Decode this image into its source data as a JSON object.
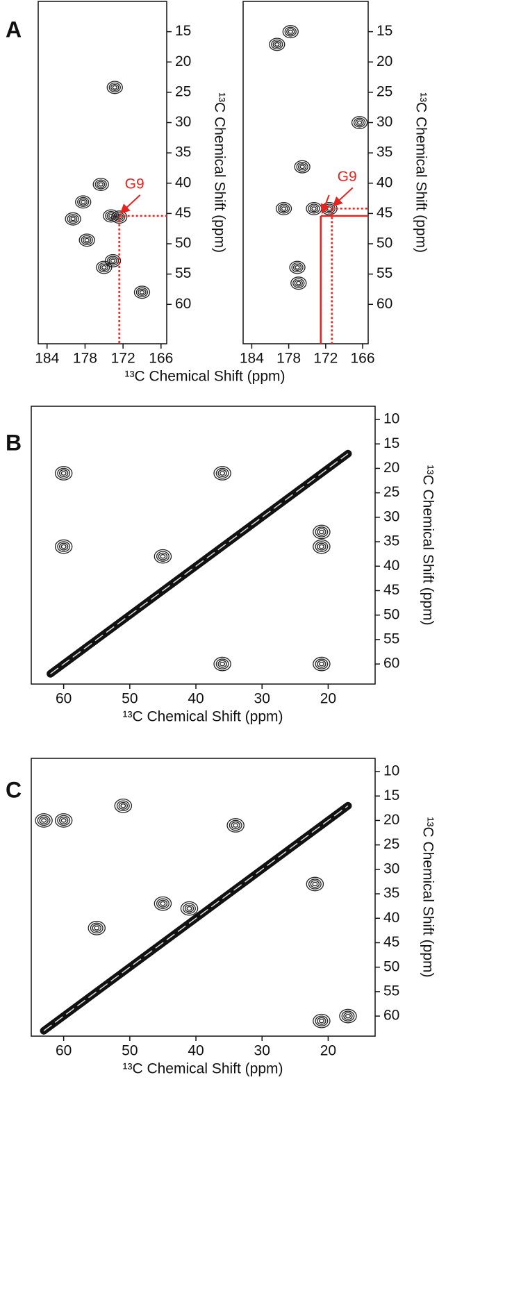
{
  "chart_data": [
    {
      "type": "contour",
      "panel_label": "A",
      "xlabel": "¹³C Chemical Shift (ppm)",
      "ylabel": "¹³C Chemical Shift (ppm)",
      "xlim": [
        185.4,
        165.1
      ],
      "ylim": [
        10,
        66.5
      ],
      "xticks": [
        184,
        178,
        172,
        166
      ],
      "yticks": [
        15,
        20,
        25,
        30,
        35,
        40,
        45,
        50,
        55,
        60
      ],
      "peaks": {
        "x": [
          175.5,
          178.3,
          173.9,
          179.9,
          173.6,
          175.0,
          177.7,
          173.3,
          169.0,
          172.6
        ],
        "y": [
          40.2,
          43.1,
          45.4,
          45.9,
          52.8,
          53.9,
          49.4,
          24.2,
          58.0,
          45.6
        ]
      },
      "annotation": "G9",
      "color": "#e8231f",
      "markers": [
        {
          "x": 172.6,
          "y": 45.4,
          "style": "dotted"
        }
      ]
    },
    {
      "type": "contour",
      "ylabel": "¹³C Chemical Shift (ppm)",
      "xlim": [
        185.4,
        165.1
      ],
      "ylim": [
        10,
        66.5
      ],
      "xticks": [
        184,
        178,
        172,
        166
      ],
      "yticks": [
        15,
        20,
        25,
        30,
        35,
        40,
        45,
        50,
        55,
        60
      ],
      "peaks": {
        "x": [
          175.8,
          178.8,
          173.9,
          171.4,
          176.6,
          176.4,
          179.9,
          177.7,
          166.5
        ],
        "y": [
          37.3,
          44.2,
          44.2,
          44.2,
          53.9,
          56.5,
          17.1,
          15.0,
          30.0
        ]
      },
      "annotation": "G9",
      "color": "#e8231f",
      "markers": [
        {
          "x": 172.8,
          "y": 45.4,
          "style": "solid"
        },
        {
          "x": 171.0,
          "y": 44.2,
          "style": "dotted"
        }
      ]
    },
    {
      "type": "contour",
      "panel_label": "B",
      "xlabel": "¹³C Chemical Shift (ppm)",
      "ylabel": "¹³C Chemical Shift (ppm)",
      "xlim": [
        64.9,
        12.9
      ],
      "ylim": [
        7.3,
        64.1
      ],
      "xticks": [
        60,
        50,
        40,
        30,
        20
      ],
      "yticks": [
        10,
        15,
        20,
        25,
        30,
        35,
        40,
        45,
        50,
        55,
        60
      ],
      "diagonal": [
        62,
        17
      ],
      "peaks": {
        "x": [
          60,
          60,
          36,
          21,
          36,
          21,
          21,
          45
        ],
        "y": [
          21,
          36,
          21,
          36,
          60,
          60,
          33,
          38
        ]
      }
    },
    {
      "type": "contour",
      "panel_label": "C",
      "xlabel": "¹³C Chemical Shift (ppm)",
      "ylabel": "¹³C Chemical Shift (ppm)",
      "xlim": [
        64.9,
        12.9
      ],
      "ylim": [
        7.3,
        64.1
      ],
      "xticks": [
        60,
        50,
        40,
        30,
        20
      ],
      "yticks": [
        10,
        15,
        20,
        25,
        30,
        35,
        40,
        45,
        50,
        55,
        60
      ],
      "diagonal": [
        63,
        17
      ],
      "peaks": {
        "x": [
          34,
          22,
          21,
          51,
          63,
          45,
          60,
          55,
          17,
          41
        ],
        "y": [
          21,
          33,
          61,
          17,
          20,
          37,
          20,
          42,
          60,
          38
        ]
      }
    }
  ]
}
